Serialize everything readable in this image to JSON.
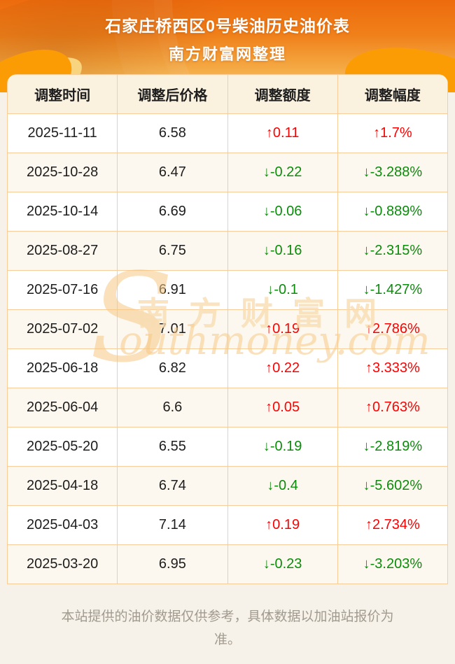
{
  "page": {
    "title": "石家庄桥西区0号柴油历史油价表",
    "subtitle": "南方财富网整理",
    "footer_line": "本站提供的油价数据仅供参考，具体数据以加油站报价为准。",
    "watermark": {
      "s": "S",
      "cn": "南方财富网",
      "en": "outhmoney.com"
    }
  },
  "colors": {
    "up_red": "#fa0303",
    "down_green": "#0b8c0b",
    "table_border": "#f8cd9a",
    "header_row_bg": "#fbf1df",
    "alt_row_bg": "#fdf8ef",
    "page_bg": "#f7f2e9",
    "banner_gradient_top": "#ed6b0d",
    "banner_gradient_bottom": "#f7c566",
    "swoosh_orange": "#fc9c05"
  },
  "table": {
    "columns": [
      "调整时间",
      "调整后价格",
      "调整额度",
      "调整幅度"
    ],
    "rows": [
      {
        "date": "2025-11-11",
        "price": "6.58",
        "change": "↑0.11",
        "rate": "↑1.7%",
        "direction": "up"
      },
      {
        "date": "2025-10-28",
        "price": "6.47",
        "change": "↓-0.22",
        "rate": "↓-3.288%",
        "direction": "down"
      },
      {
        "date": "2025-10-14",
        "price": "6.69",
        "change": "↓-0.06",
        "rate": "↓-0.889%",
        "direction": "down"
      },
      {
        "date": "2025-08-27",
        "price": "6.75",
        "change": "↓-0.16",
        "rate": "↓-2.315%",
        "direction": "down"
      },
      {
        "date": "2025-07-16",
        "price": "6.91",
        "change": "↓-0.1",
        "rate": "↓-1.427%",
        "direction": "down"
      },
      {
        "date": "2025-07-02",
        "price": "7.01",
        "change": "↑0.19",
        "rate": "↑2.786%",
        "direction": "up"
      },
      {
        "date": "2025-06-18",
        "price": "6.82",
        "change": "↑0.22",
        "rate": "↑3.333%",
        "direction": "up"
      },
      {
        "date": "2025-06-04",
        "price": "6.6",
        "change": "↑0.05",
        "rate": "↑0.763%",
        "direction": "up"
      },
      {
        "date": "2025-05-20",
        "price": "6.55",
        "change": "↓-0.19",
        "rate": "↓-2.819%",
        "direction": "down"
      },
      {
        "date": "2025-04-18",
        "price": "6.74",
        "change": "↓-0.4",
        "rate": "↓-5.602%",
        "direction": "down"
      },
      {
        "date": "2025-04-03",
        "price": "7.14",
        "change": "↑0.19",
        "rate": "↑2.734%",
        "direction": "up"
      },
      {
        "date": "2025-03-20",
        "price": "6.95",
        "change": "↓-0.23",
        "rate": "↓-3.203%",
        "direction": "down"
      }
    ]
  },
  "chart_data": {
    "type": "table",
    "title": "石家庄桥西区0号柴油历史油价表",
    "subtitle": "南方财富网整理",
    "columns": [
      "调整时间",
      "调整后价格",
      "调整额度",
      "调整幅度"
    ],
    "rows": [
      [
        "2025-11-11",
        "6.58",
        "↑0.11",
        "↑1.7%"
      ],
      [
        "2025-10-28",
        "6.47",
        "↓-0.22",
        "↓-3.288%"
      ],
      [
        "2025-10-14",
        "6.69",
        "↓-0.06",
        "↓-0.889%"
      ],
      [
        "2025-08-27",
        "6.75",
        "↓-0.16",
        "↓-2.315%"
      ],
      [
        "2025-07-16",
        "6.91",
        "↓-0.1",
        "↓-1.427%"
      ],
      [
        "2025-07-02",
        "7.01",
        "↑0.19",
        "↑2.786%"
      ],
      [
        "2025-06-18",
        "6.82",
        "↑0.22",
        "↑3.333%"
      ],
      [
        "2025-06-04",
        "6.6",
        "↑0.05",
        "↑0.763%"
      ],
      [
        "2025-05-20",
        "6.55",
        "↓-0.19",
        "↓-2.819%"
      ],
      [
        "2025-04-18",
        "6.74",
        "↓-0.4",
        "↓-5.602%"
      ],
      [
        "2025-04-03",
        "7.14",
        "↑0.19",
        "↑2.734%"
      ],
      [
        "2025-03-20",
        "6.95",
        "↓-0.23",
        "↓-3.203%"
      ]
    ]
  }
}
